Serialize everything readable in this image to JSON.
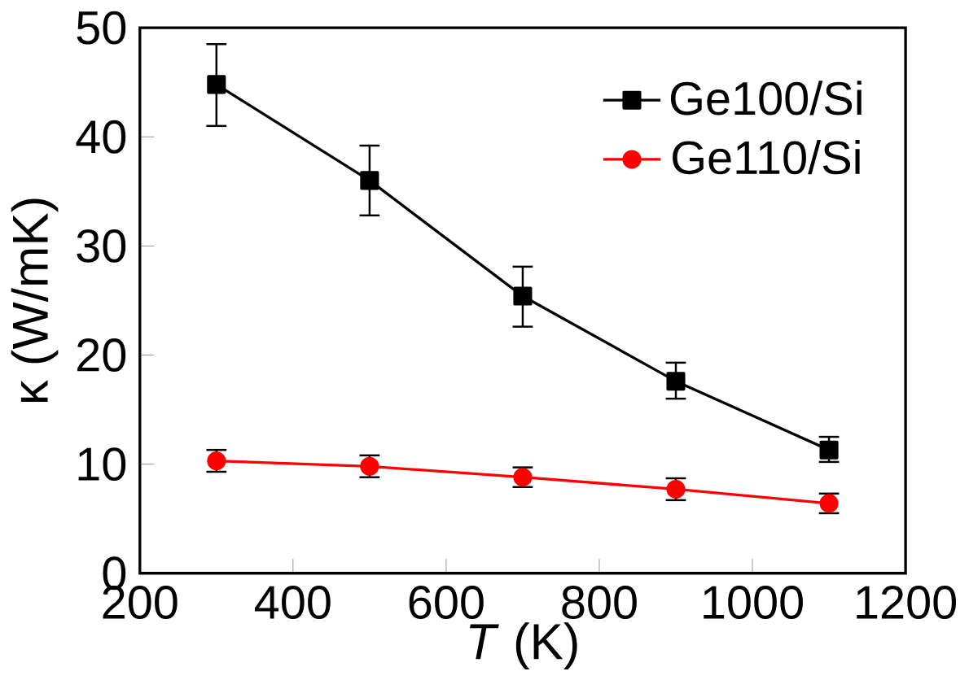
{
  "chart_data": {
    "type": "line",
    "xlabel": "*T* (K)",
    "ylabel": "κ (W/mK)",
    "x": [
      300,
      500,
      700,
      900,
      1100
    ],
    "series": [
      {
        "name": "Ge100/Si",
        "color": "#000000",
        "marker": "square",
        "values": [
          44.8,
          36.0,
          25.4,
          17.6,
          11.3
        ],
        "errors": [
          [
            41.0,
            48.5
          ],
          [
            32.8,
            39.2
          ],
          [
            22.6,
            28.1
          ],
          [
            16.0,
            19.3
          ],
          [
            10.2,
            12.5
          ]
        ]
      },
      {
        "name": "Ge110/Si",
        "color": "#ff0000",
        "marker": "circle",
        "values": [
          10.3,
          9.8,
          8.8,
          7.7,
          6.4
        ],
        "errors": [
          1.0,
          1.0,
          0.9,
          1.0,
          0.9
        ]
      }
    ],
    "xlim": [
      200,
      1200
    ],
    "xticks": [
      200,
      400,
      600,
      800,
      1000,
      1200
    ],
    "ylim": [
      0,
      50
    ],
    "yticks": [
      0,
      10,
      20,
      30,
      40,
      50
    ],
    "legend": "top right",
    "line_style": "solid",
    "grid": false
  }
}
